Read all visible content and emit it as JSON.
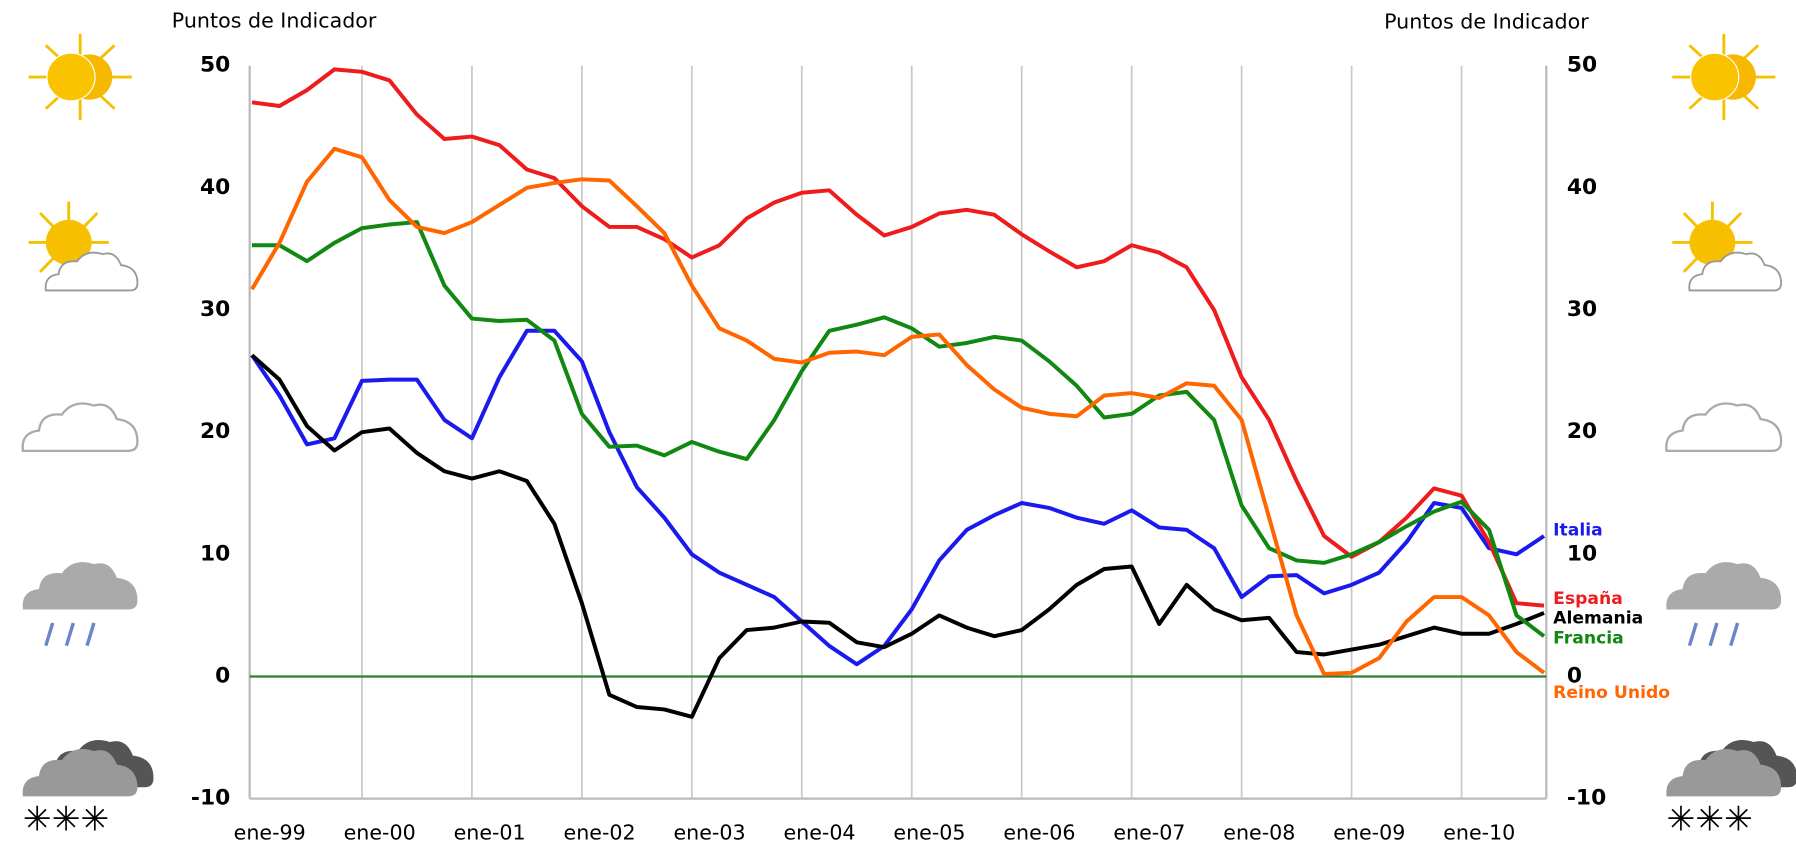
{
  "chart_data": {
    "type": "line",
    "ylabel": "Puntos de Indicador",
    "y2label": "Puntos de Indicador",
    "categories": [
      "ene-99",
      null,
      null,
      null,
      "ene-00",
      null,
      null,
      null,
      "ene-01",
      null,
      null,
      null,
      "ene-02",
      null,
      null,
      null,
      "ene-03",
      null,
      null,
      null,
      "ene-04",
      null,
      null,
      null,
      "ene-05",
      null,
      null,
      null,
      "ene-06",
      null,
      null,
      null,
      "ene-07",
      null,
      null,
      null,
      "ene-08",
      null,
      null,
      null,
      "ene-09",
      null,
      null,
      null,
      "ene-10",
      null,
      null,
      null
    ],
    "ylim": [
      -10,
      50
    ],
    "yticks": [
      -10,
      0,
      10,
      20,
      30,
      40,
      50
    ],
    "y2lim": [
      -10,
      50
    ],
    "y2ticks": [
      -10,
      0,
      10,
      20,
      30,
      40,
      50
    ],
    "grid": true,
    "series": [
      {
        "name": "Italia",
        "color": "#1a1aee",
        "values": [
          26.3,
          23,
          19,
          19.5,
          24.2,
          24.3,
          24.3,
          21,
          19.5,
          24.5,
          28.3,
          28.3,
          25.8,
          20,
          15.5,
          13,
          10,
          8.5,
          7.5,
          6.5,
          4.5,
          2.5,
          1,
          2.5,
          5.5,
          9.5,
          12,
          13.2,
          14.2,
          13.8,
          13,
          12.5,
          13.6,
          12.2,
          12,
          10.5,
          6.5,
          8.2,
          8.3,
          6.8,
          7.5,
          8.5,
          11,
          14.2,
          13.8,
          10.5,
          10,
          11.5
        ]
      },
      {
        "name": "España",
        "color": "#ee1c1c",
        "values": [
          47,
          46.7,
          48,
          49.7,
          49.5,
          48.8,
          46,
          44,
          44.2,
          43.5,
          41.5,
          40.8,
          38.5,
          36.8,
          36.8,
          35.8,
          34.3,
          35.3,
          37.5,
          38.8,
          39.6,
          39.8,
          37.8,
          36.1,
          36.8,
          37.9,
          38.2,
          37.8,
          36.2,
          34.8,
          33.5,
          34,
          35.3,
          34.7,
          33.5,
          30,
          24.5,
          21,
          16,
          11.5,
          9.8,
          11,
          13,
          15.4,
          14.8,
          11,
          6,
          5.8
        ]
      },
      {
        "name": "Alemania",
        "color": "#000000",
        "values": [
          26.3,
          24.3,
          20.5,
          18.5,
          20,
          20.3,
          18.3,
          16.8,
          16.2,
          16.8,
          16,
          12.5,
          6,
          -1.5,
          -2.5,
          -2.7,
          -3.3,
          1.5,
          3.8,
          4,
          4.5,
          4.4,
          2.8,
          2.4,
          3.5,
          5,
          4,
          3.3,
          3.8,
          5.5,
          7.5,
          8.8,
          9,
          4.3,
          7.5,
          5.5,
          4.6,
          4.8,
          2,
          1.8,
          2.2,
          2.6,
          3.3,
          4,
          3.5,
          3.5,
          4.3,
          5.2
        ]
      },
      {
        "name": "Francia",
        "color": "#118811",
        "values": [
          35.3,
          35.3,
          34,
          35.5,
          36.7,
          37,
          37.2,
          32,
          29.3,
          29.1,
          29.2,
          27.5,
          21.5,
          18.8,
          18.9,
          18.1,
          19.2,
          18.4,
          17.8,
          21,
          25,
          28.3,
          28.8,
          29.4,
          28.5,
          27,
          27.3,
          27.8,
          27.5,
          25.8,
          23.8,
          21.2,
          21.5,
          23,
          23.3,
          21,
          14,
          10.5,
          9.5,
          9.3,
          10,
          11,
          12.3,
          13.5,
          14.3,
          12,
          5,
          3.3
        ]
      },
      {
        "name": "Reino Unido",
        "color": "#ff6600",
        "values": [
          31.7,
          35.5,
          40.5,
          43.2,
          42.5,
          39,
          36.8,
          36.3,
          37.2,
          38.6,
          40,
          40.4,
          40.7,
          40.6,
          38.5,
          36.3,
          32,
          28.5,
          27.5,
          26,
          25.7,
          26.5,
          26.6,
          26.3,
          27.8,
          28,
          25.5,
          23.5,
          22,
          21.5,
          21.3,
          23,
          23.2,
          22.8,
          24,
          23.8,
          21,
          13,
          5,
          0.2,
          0.3,
          1.5,
          4.5,
          6.5,
          6.5,
          5,
          2,
          0.3
        ]
      }
    ]
  }
}
